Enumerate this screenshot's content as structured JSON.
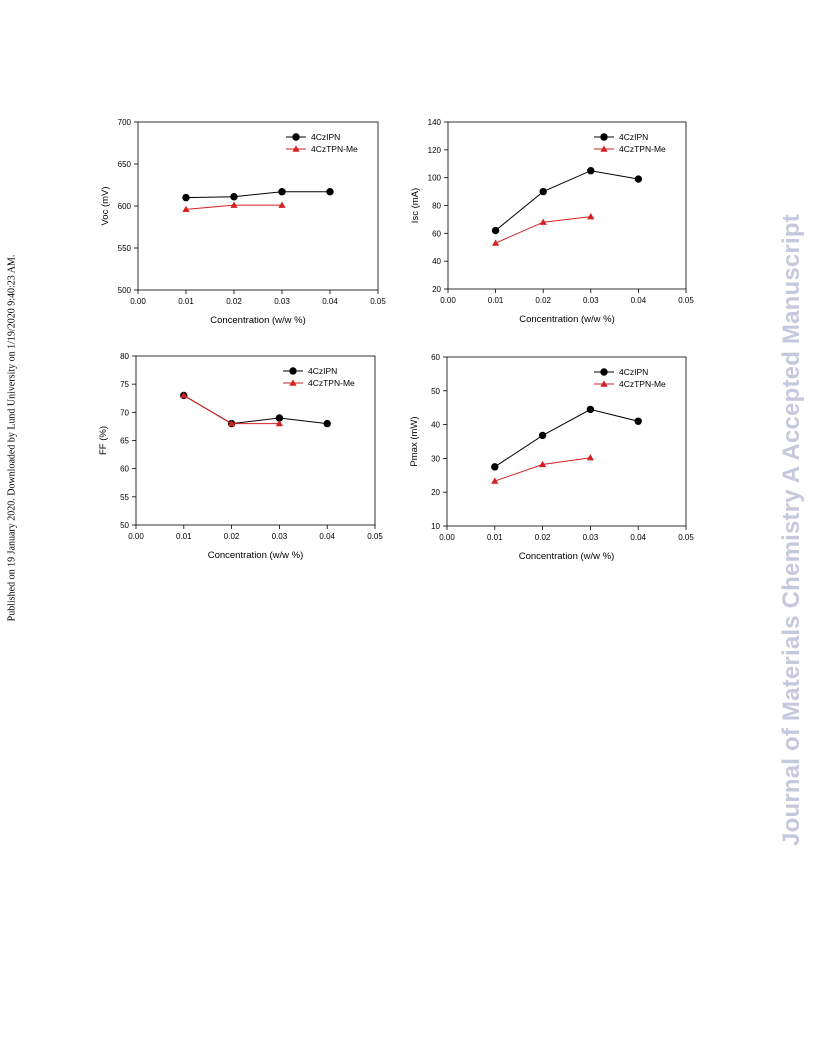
{
  "sidebar_left_text": "Published on 19 January 2020. Downloaded by Lund University on 1/19/2020 9:40:23 AM.",
  "watermark_text": "Journal of Materials Chemistry A Accepted Manuscript",
  "colors": {
    "series1": "#000000",
    "series2": "#d42020",
    "series2_line": "#d42020",
    "axis": "#000000"
  },
  "chart_data": [
    {
      "type": "line",
      "xlabel": "Concentration (w/w %)",
      "ylabel": "Voc (mV)",
      "xlim": [
        0,
        0.05
      ],
      "ylim": [
        500,
        700
      ],
      "xticks": [
        "0.00",
        "0.01",
        "0.02",
        "0.03",
        "0.04",
        "0.05"
      ],
      "yticks": [
        "500",
        "550",
        "600",
        "650",
        "700"
      ],
      "legend_position": "top-right",
      "series": [
        {
          "name": "4CzIPN",
          "marker": "circle",
          "x": [
            0.01,
            0.02,
            0.03,
            0.04
          ],
          "y": [
            610,
            611,
            617,
            617
          ]
        },
        {
          "name": "4CzTPN-Me",
          "marker": "triangle",
          "x": [
            0.01,
            0.02,
            0.03
          ],
          "y": [
            596,
            601,
            601
          ]
        }
      ]
    },
    {
      "type": "line",
      "xlabel": "Concentration (w/w %)",
      "ylabel": "Isc (mA)",
      "xlim": [
        0,
        0.05
      ],
      "ylim": [
        20,
        140
      ],
      "xticks": [
        "0.00",
        "0.01",
        "0.02",
        "0.03",
        "0.04",
        "0.05"
      ],
      "yticks": [
        "20",
        "40",
        "60",
        "80",
        "100",
        "120",
        "140"
      ],
      "legend_position": "top-right",
      "series": [
        {
          "name": "4CzIPN",
          "marker": "circle",
          "x": [
            0.01,
            0.02,
            0.03,
            0.04
          ],
          "y": [
            62,
            90,
            105,
            99
          ]
        },
        {
          "name": "4CzTPN-Me",
          "marker": "triangle",
          "x": [
            0.01,
            0.02,
            0.03
          ],
          "y": [
            53,
            68,
            72
          ]
        }
      ]
    },
    {
      "type": "line",
      "xlabel": "Concentration (w/w %)",
      "ylabel": "FF (%)",
      "xlim": [
        0,
        0.05
      ],
      "ylim": [
        50,
        80
      ],
      "xticks": [
        "0.00",
        "0.01",
        "0.02",
        "0.03",
        "0.04",
        "0.05"
      ],
      "yticks": [
        "50",
        "55",
        "60",
        "65",
        "70",
        "75",
        "80"
      ],
      "legend_position": "top-right",
      "series": [
        {
          "name": "4CzIPN",
          "marker": "circle",
          "x": [
            0.01,
            0.02,
            0.03,
            0.04
          ],
          "y": [
            73,
            68,
            69,
            68
          ]
        },
        {
          "name": "4CzTPN-Me",
          "marker": "triangle",
          "x": [
            0.01,
            0.02,
            0.03
          ],
          "y": [
            73,
            68,
            68
          ]
        }
      ]
    },
    {
      "type": "line",
      "xlabel": "Concentration (w/w %)",
      "ylabel": "Pmax (mW)",
      "xlim": [
        0,
        0.05
      ],
      "ylim": [
        10,
        60
      ],
      "xticks": [
        "0.00",
        "0.01",
        "0.02",
        "0.03",
        "0.04",
        "0.05"
      ],
      "yticks": [
        "10",
        "20",
        "30",
        "40",
        "50",
        "60"
      ],
      "legend_position": "top-right",
      "series": [
        {
          "name": "4CzIPN",
          "marker": "circle",
          "x": [
            0.01,
            0.02,
            0.03,
            0.04
          ],
          "y": [
            27.5,
            36.8,
            44.5,
            41
          ]
        },
        {
          "name": "4CzTPN-Me",
          "marker": "triangle",
          "x": [
            0.01,
            0.02,
            0.03
          ],
          "y": [
            23.3,
            28.2,
            30.2
          ]
        }
      ]
    }
  ]
}
